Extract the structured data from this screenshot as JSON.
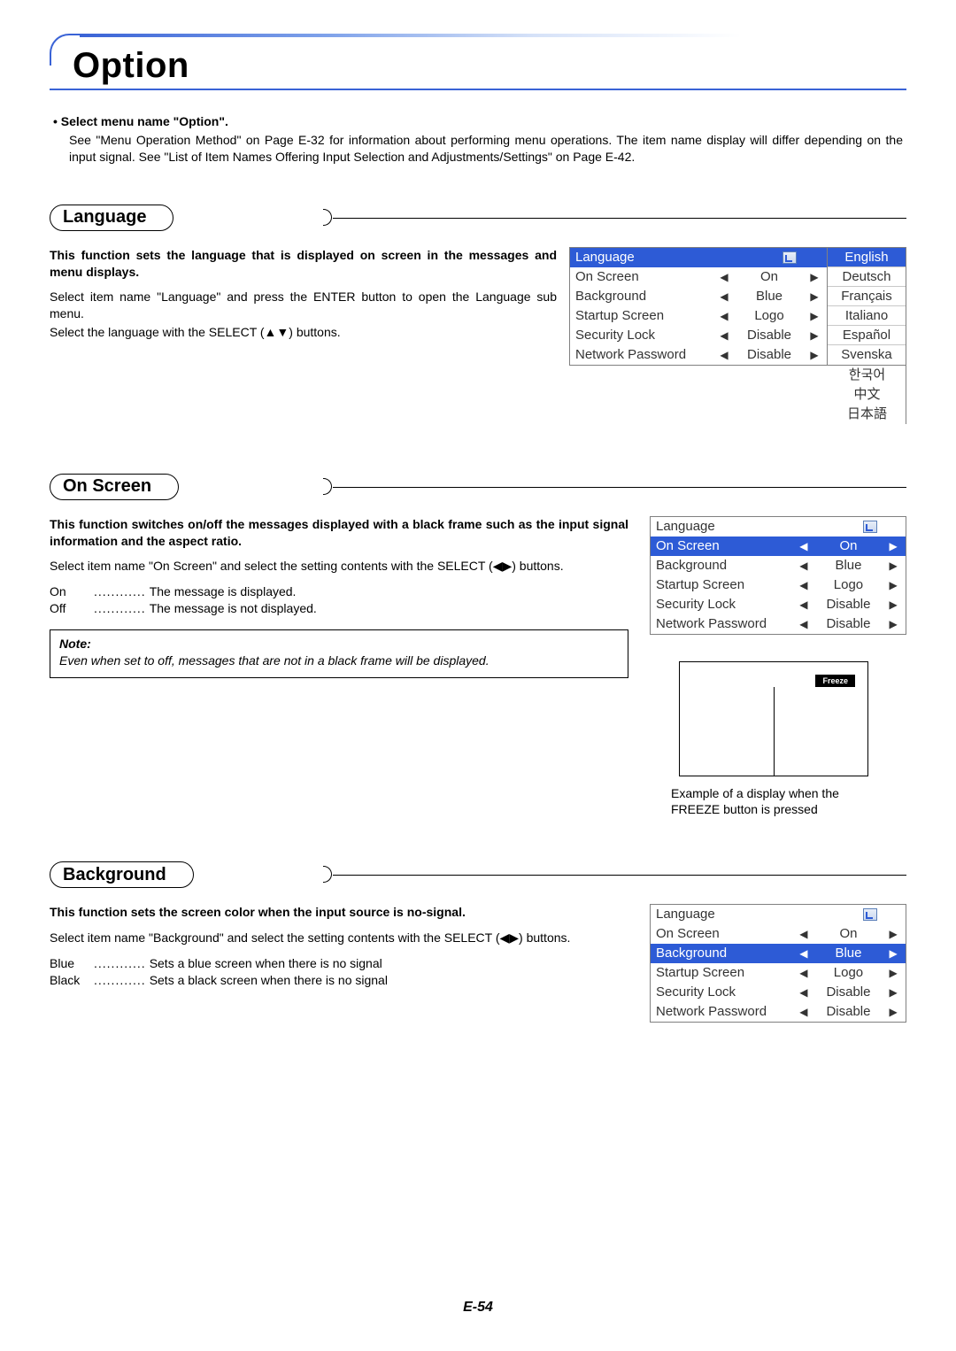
{
  "page_number": "E-54",
  "chapter_title": "Option",
  "intro": {
    "bullet_bold": "• Select menu name \"Option\".",
    "body": "See \"Menu Operation Method\" on Page E-32 for information about performing menu operations. The item name display will differ depending on the input signal. See \"List of Item Names Offering Input Selection and Adjustments/Settings\" on Page E-42."
  },
  "colors": {
    "highlight_bg": "#2d5bd6",
    "highlight_fg": "#ffffff",
    "rule": "#808080",
    "heading_blue": "#3a63d6"
  },
  "sections": {
    "language": {
      "title": "Language",
      "bold": "This function sets the language that is displayed on screen in the messages and menu displays.",
      "p1": "Select item name \"Language\" and press the ENTER button to open the Language sub menu.",
      "p2": "Select the language with the SELECT (▲▼) buttons.",
      "menu": {
        "highlight_index": 0,
        "rows": [
          {
            "label": "Language",
            "type": "enter"
          },
          {
            "label": "On Screen",
            "val": "On"
          },
          {
            "label": "Background",
            "val": "Blue"
          },
          {
            "label": "Startup Screen",
            "val": "Logo"
          },
          {
            "label": "Security Lock",
            "val": "Disable"
          },
          {
            "label": "Network Password",
            "val": "Disable"
          }
        ]
      },
      "languages": {
        "highlight_index": 0,
        "boxed": [
          "English",
          "Deutsch",
          "Français",
          "Italiano",
          "Español",
          "Svenska"
        ],
        "extra": [
          "한국어",
          "中文",
          "日本語"
        ]
      }
    },
    "onscreen": {
      "title": "On Screen",
      "bold": "This function switches on/off the messages displayed with a black frame such as the input signal information and the aspect ratio.",
      "p1": "Select item name \"On Screen\" and select the setting contents with the SELECT (◀▶) buttons.",
      "defs": [
        {
          "k": "On",
          "v": "The message is displayed."
        },
        {
          "k": "Off",
          "v": "The message is not displayed."
        }
      ],
      "note_label": "Note:",
      "note_body": "Even when set to off, messages that are not in a black frame will be displayed.",
      "menu": {
        "highlight_index": 1,
        "rows": [
          {
            "label": "Language",
            "type": "enter"
          },
          {
            "label": "On Screen",
            "val": "On"
          },
          {
            "label": "Background",
            "val": "Blue"
          },
          {
            "label": "Startup Screen",
            "val": "Logo"
          },
          {
            "label": "Security Lock",
            "val": "Disable"
          },
          {
            "label": "Network Password",
            "val": "Disable"
          }
        ]
      },
      "freeze_label": "Freeze",
      "freeze_caption": "Example of a display when the FREEZE button is pressed"
    },
    "background": {
      "title": "Background",
      "bold": "This function sets the screen color when the input source is no-signal.",
      "p1": "Select item name \"Background\" and select the setting contents with the SELECT (◀▶) buttons.",
      "defs": [
        {
          "k": "Blue",
          "v": "Sets a blue screen when there is no signal"
        },
        {
          "k": "Black",
          "v": "Sets a black screen when there is no signal"
        }
      ],
      "menu": {
        "highlight_index": 2,
        "rows": [
          {
            "label": "Language",
            "type": "enter"
          },
          {
            "label": "On Screen",
            "val": "On"
          },
          {
            "label": "Background",
            "val": "Blue"
          },
          {
            "label": "Startup Screen",
            "val": "Logo"
          },
          {
            "label": "Security Lock",
            "val": "Disable"
          },
          {
            "label": "Network Password",
            "val": "Disable"
          }
        ]
      }
    }
  }
}
